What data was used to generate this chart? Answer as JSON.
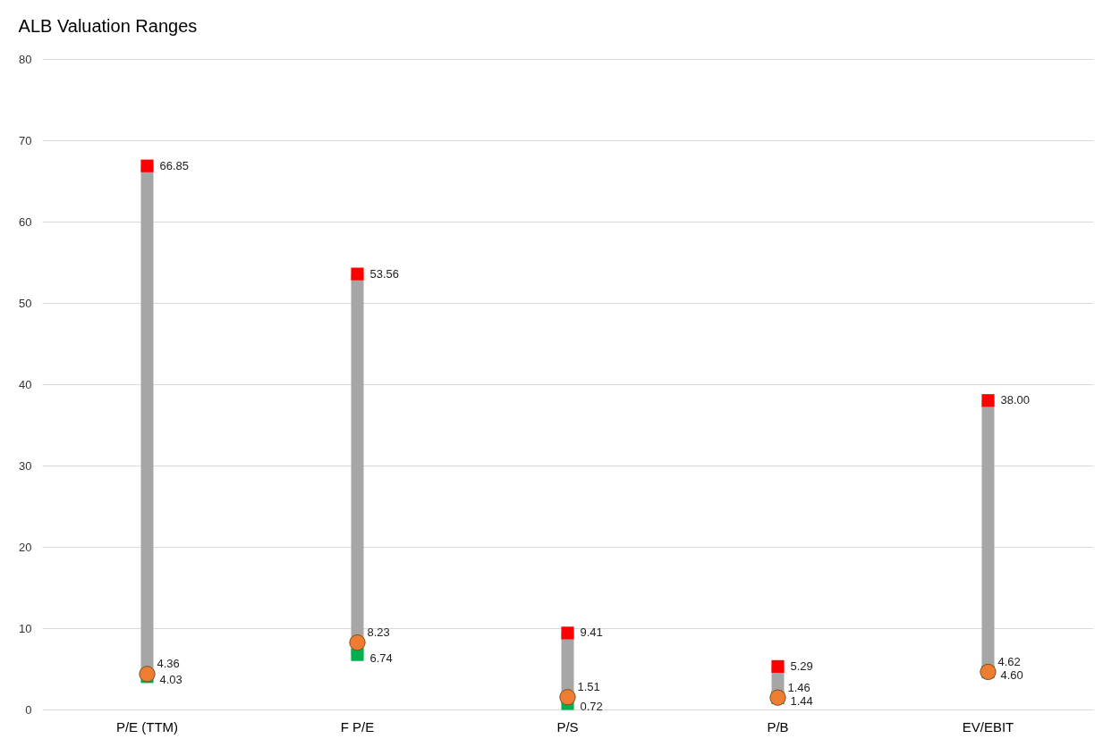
{
  "chart_data": {
    "type": "scatter",
    "title": "ALB Valuation Ranges",
    "categories": [
      "P/E (TTM)",
      "F P/E",
      "P/S",
      "P/B",
      "EV/EBIT"
    ],
    "series": [
      {
        "color": "#ff0000",
        "marker": "square",
        "values": [
          66.85,
          53.56,
          9.41,
          5.29,
          38.0
        ],
        "value_labels": [
          "66.85",
          "53.56",
          "9.41",
          "5.29",
          "38.00"
        ]
      },
      {
        "color": "#00b050",
        "marker": "square",
        "values": [
          4.03,
          6.74,
          0.72,
          1.44,
          4.6
        ],
        "value_labels": [
          "4.03",
          "6.74",
          "0.72",
          "1.44",
          "4.60"
        ]
      },
      {
        "color": "#ed7d31",
        "marker": "circle",
        "values": [
          4.36,
          8.23,
          1.51,
          1.46,
          4.62
        ],
        "value_labels": [
          "4.36",
          "8.23",
          "1.51",
          "1.46",
          "4.62"
        ]
      }
    ],
    "ylim": [
      0,
      80
    ],
    "yticks": [
      0,
      10,
      20,
      30,
      40,
      50,
      60,
      70,
      80
    ],
    "grid": "y"
  }
}
